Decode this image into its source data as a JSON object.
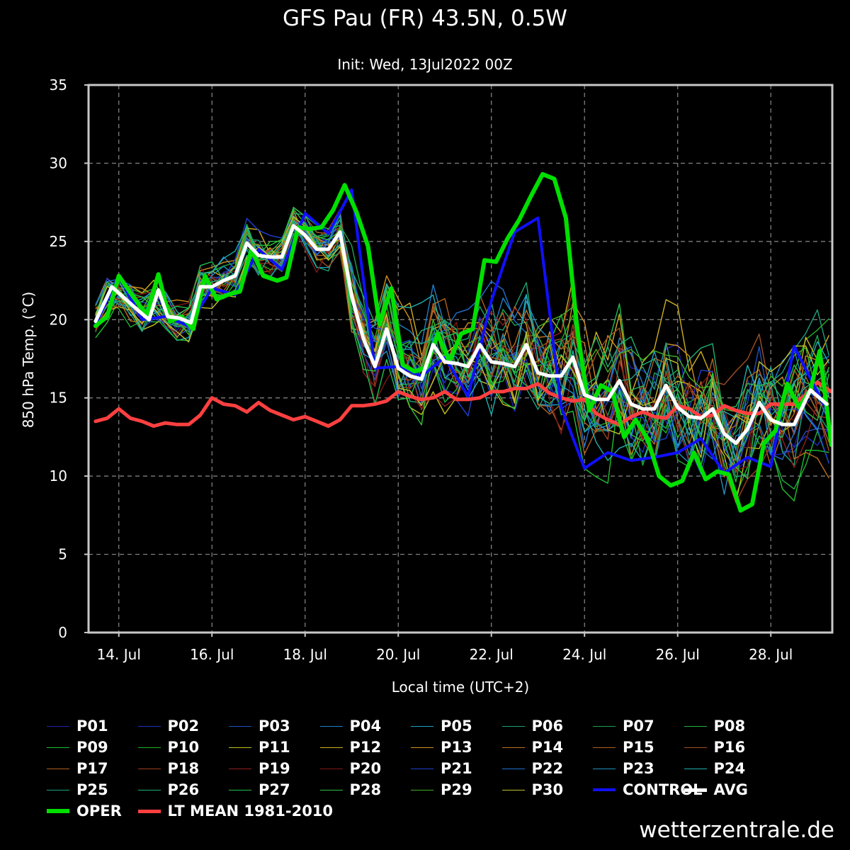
{
  "title": "GFS Pau (FR) 43.5N, 0.5W",
  "subtitle": "Init: Wed, 13Jul2022 00Z",
  "credit": "wetterzentrale.de",
  "chart_data": {
    "type": "line",
    "title": "GFS Pau (FR) 43.5N, 0.5W",
    "xlabel": "Local time (UTC+2)",
    "ylabel": "850 hPa Temp. (°C)",
    "ylim": [
      0,
      35
    ],
    "yticks": [
      0,
      5,
      10,
      15,
      20,
      25,
      30,
      35
    ],
    "x_unit": "days since 13 Jul 00:00 local",
    "xlim": [
      0.35,
      16.32
    ],
    "xticks": [
      {
        "x": 1,
        "label": "14. Jul"
      },
      {
        "x": 3,
        "label": "16. Jul"
      },
      {
        "x": 5,
        "label": "18. Jul"
      },
      {
        "x": 7,
        "label": "20. Jul"
      },
      {
        "x": 9,
        "label": "22. Jul"
      },
      {
        "x": 11,
        "label": "24. Jul"
      },
      {
        "x": 13,
        "label": "26. Jul"
      },
      {
        "x": 15,
        "label": "28. Jul"
      }
    ],
    "grid": true,
    "legend_position": "bottom",
    "series": [
      {
        "name": "CONTROL",
        "color": "#1010ff",
        "width": 4,
        "points": [
          [
            0.5,
            19.7
          ],
          [
            1.0,
            22.8
          ],
          [
            1.5,
            20.0
          ],
          [
            2.0,
            20.2
          ],
          [
            2.5,
            19.6
          ],
          [
            3.0,
            22.0
          ],
          [
            3.5,
            21.6
          ],
          [
            4.0,
            24.5
          ],
          [
            4.5,
            23.2
          ],
          [
            5.0,
            26.8
          ],
          [
            5.5,
            25.5
          ],
          [
            6.0,
            28.3
          ],
          [
            6.5,
            16.9
          ],
          [
            7.0,
            17.0
          ],
          [
            7.5,
            16.4
          ],
          [
            8.0,
            17.6
          ],
          [
            8.5,
            15.1
          ],
          [
            9.0,
            21.2
          ],
          [
            9.5,
            25.6
          ],
          [
            10.0,
            26.5
          ],
          [
            10.5,
            14.4
          ],
          [
            11.0,
            10.5
          ],
          [
            11.5,
            11.5
          ],
          [
            12.0,
            11.0
          ],
          [
            12.5,
            11.2
          ],
          [
            13.0,
            11.5
          ],
          [
            13.5,
            12.4
          ],
          [
            14.0,
            10.2
          ],
          [
            14.5,
            11.2
          ],
          [
            15.0,
            10.6
          ],
          [
            15.5,
            18.3
          ],
          [
            16.2,
            14.2
          ]
        ]
      },
      {
        "name": "AVG",
        "color": "#ffffff",
        "width": 5,
        "points": [
          [
            0.5,
            19.9
          ],
          [
            0.85,
            22.1
          ],
          [
            1.15,
            21.3
          ],
          [
            1.45,
            20.5
          ],
          [
            1.65,
            20.0
          ],
          [
            1.85,
            21.9
          ],
          [
            2.05,
            20.2
          ],
          [
            2.3,
            20.1
          ],
          [
            2.55,
            19.8
          ],
          [
            2.75,
            22.1
          ],
          [
            3.0,
            22.1
          ],
          [
            3.25,
            22.5
          ],
          [
            3.5,
            22.8
          ],
          [
            3.75,
            24.9
          ],
          [
            4.0,
            24.1
          ],
          [
            4.25,
            24.0
          ],
          [
            4.5,
            24.0
          ],
          [
            4.75,
            26.0
          ],
          [
            5.0,
            25.4
          ],
          [
            5.25,
            24.5
          ],
          [
            5.5,
            24.5
          ],
          [
            5.75,
            25.6
          ],
          [
            6.0,
            21.5
          ],
          [
            6.25,
            18.8
          ],
          [
            6.5,
            17.0
          ],
          [
            6.75,
            19.4
          ],
          [
            7.0,
            16.9
          ],
          [
            7.25,
            16.4
          ],
          [
            7.5,
            16.2
          ],
          [
            7.75,
            18.4
          ],
          [
            8.0,
            17.3
          ],
          [
            8.25,
            17.2
          ],
          [
            8.5,
            17.0
          ],
          [
            8.75,
            18.4
          ],
          [
            9.0,
            17.3
          ],
          [
            9.25,
            17.2
          ],
          [
            9.5,
            17.0
          ],
          [
            9.75,
            18.4
          ],
          [
            10.0,
            16.6
          ],
          [
            10.25,
            16.4
          ],
          [
            10.5,
            16.4
          ],
          [
            10.75,
            17.6
          ],
          [
            11.0,
            15.2
          ],
          [
            11.25,
            14.9
          ],
          [
            11.5,
            14.9
          ],
          [
            11.75,
            16.1
          ],
          [
            12.0,
            14.6
          ],
          [
            12.25,
            14.3
          ],
          [
            12.5,
            14.3
          ],
          [
            12.75,
            15.8
          ],
          [
            13.0,
            14.4
          ],
          [
            13.25,
            13.8
          ],
          [
            13.5,
            13.7
          ],
          [
            13.75,
            14.3
          ],
          [
            14.0,
            12.7
          ],
          [
            14.25,
            12.1
          ],
          [
            14.5,
            13.0
          ],
          [
            14.75,
            14.7
          ],
          [
            15.0,
            13.6
          ],
          [
            15.25,
            13.3
          ],
          [
            15.5,
            13.3
          ],
          [
            15.85,
            15.5
          ],
          [
            16.2,
            14.6
          ]
        ]
      },
      {
        "name": "OPER",
        "color": "#00e000",
        "width": 6,
        "points": [
          [
            0.5,
            19.6
          ],
          [
            0.75,
            20.2
          ],
          [
            1.0,
            22.8
          ],
          [
            1.3,
            21.5
          ],
          [
            1.6,
            20.3
          ],
          [
            1.85,
            22.9
          ],
          [
            2.1,
            19.9
          ],
          [
            2.35,
            20.2
          ],
          [
            2.6,
            19.4
          ],
          [
            2.85,
            22.8
          ],
          [
            3.1,
            21.3
          ],
          [
            3.35,
            21.6
          ],
          [
            3.6,
            21.8
          ],
          [
            3.85,
            24.5
          ],
          [
            4.1,
            22.8
          ],
          [
            4.4,
            22.5
          ],
          [
            4.6,
            22.7
          ],
          [
            4.85,
            25.9
          ],
          [
            5.1,
            25.8
          ],
          [
            5.35,
            25.9
          ],
          [
            5.6,
            27.0
          ],
          [
            5.85,
            28.6
          ],
          [
            6.1,
            26.9
          ],
          [
            6.35,
            24.7
          ],
          [
            6.6,
            19.7
          ],
          [
            6.85,
            22.0
          ],
          [
            7.1,
            17.1
          ],
          [
            7.35,
            16.7
          ],
          [
            7.6,
            16.9
          ],
          [
            7.85,
            19.1
          ],
          [
            8.1,
            17.3
          ],
          [
            8.35,
            19.1
          ],
          [
            8.6,
            19.4
          ],
          [
            8.85,
            23.8
          ],
          [
            9.1,
            23.7
          ],
          [
            9.35,
            25.2
          ],
          [
            9.6,
            26.4
          ],
          [
            9.85,
            27.9
          ],
          [
            10.1,
            29.3
          ],
          [
            10.35,
            29.0
          ],
          [
            10.6,
            26.5
          ],
          [
            10.85,
            19.2
          ],
          [
            11.1,
            14.2
          ],
          [
            11.35,
            15.8
          ],
          [
            11.6,
            15.4
          ],
          [
            11.85,
            12.5
          ],
          [
            12.1,
            13.6
          ],
          [
            12.35,
            12.4
          ],
          [
            12.6,
            10.0
          ],
          [
            12.85,
            9.4
          ],
          [
            13.1,
            9.7
          ],
          [
            13.35,
            11.5
          ],
          [
            13.6,
            9.8
          ],
          [
            13.85,
            10.3
          ],
          [
            14.1,
            10.1
          ],
          [
            14.35,
            7.8
          ],
          [
            14.6,
            8.2
          ],
          [
            14.85,
            12.1
          ],
          [
            15.1,
            12.9
          ],
          [
            15.35,
            15.9
          ],
          [
            15.6,
            14.4
          ],
          [
            15.85,
            15.5
          ],
          [
            16.05,
            18.0
          ],
          [
            16.3,
            12.0
          ]
        ]
      },
      {
        "name": "LT MEAN 1981-2010",
        "color": "#ff4040",
        "width": 5,
        "points": [
          [
            0.5,
            13.5
          ],
          [
            0.75,
            13.7
          ],
          [
            1.0,
            14.3
          ],
          [
            1.25,
            13.7
          ],
          [
            1.5,
            13.5
          ],
          [
            1.75,
            13.2
          ],
          [
            2.0,
            13.4
          ],
          [
            2.25,
            13.3
          ],
          [
            2.5,
            13.3
          ],
          [
            2.75,
            13.9
          ],
          [
            3.0,
            15.0
          ],
          [
            3.25,
            14.6
          ],
          [
            3.5,
            14.5
          ],
          [
            3.75,
            14.1
          ],
          [
            4.0,
            14.7
          ],
          [
            4.25,
            14.2
          ],
          [
            4.5,
            13.9
          ],
          [
            4.75,
            13.6
          ],
          [
            5.0,
            13.8
          ],
          [
            5.25,
            13.5
          ],
          [
            5.5,
            13.2
          ],
          [
            5.75,
            13.6
          ],
          [
            6.0,
            14.5
          ],
          [
            6.25,
            14.5
          ],
          [
            6.5,
            14.6
          ],
          [
            6.75,
            14.8
          ],
          [
            7.0,
            15.4
          ],
          [
            7.25,
            15.1
          ],
          [
            7.5,
            14.9
          ],
          [
            7.75,
            15.0
          ],
          [
            8.0,
            15.4
          ],
          [
            8.25,
            14.9
          ],
          [
            8.5,
            14.9
          ],
          [
            8.75,
            15.0
          ],
          [
            9.0,
            15.4
          ],
          [
            9.25,
            15.4
          ],
          [
            9.5,
            15.6
          ],
          [
            9.75,
            15.6
          ],
          [
            10.0,
            15.9
          ],
          [
            10.25,
            15.3
          ],
          [
            10.5,
            15.0
          ],
          [
            10.75,
            14.8
          ],
          [
            11.0,
            14.9
          ],
          [
            11.25,
            14.0
          ],
          [
            11.5,
            13.6
          ],
          [
            11.75,
            13.3
          ],
          [
            12.0,
            13.8
          ],
          [
            12.25,
            14.1
          ],
          [
            12.5,
            13.8
          ],
          [
            12.75,
            13.7
          ],
          [
            13.0,
            14.5
          ],
          [
            13.25,
            14.3
          ],
          [
            13.5,
            13.8
          ],
          [
            13.75,
            13.9
          ],
          [
            14.0,
            14.5
          ],
          [
            14.25,
            14.2
          ],
          [
            14.5,
            14.0
          ],
          [
            14.75,
            14.0
          ],
          [
            15.0,
            14.6
          ],
          [
            15.25,
            14.6
          ],
          [
            15.5,
            14.6
          ],
          [
            15.75,
            15.2
          ],
          [
            16.0,
            16.0
          ],
          [
            16.3,
            15.4
          ]
        ]
      }
    ],
    "members": [
      {
        "name": "P01",
        "color": "#2020b0"
      },
      {
        "name": "P02",
        "color": "#2030c0"
      },
      {
        "name": "P03",
        "color": "#2050c0"
      },
      {
        "name": "P04",
        "color": "#2080c8"
      },
      {
        "name": "P05",
        "color": "#20a0c8"
      },
      {
        "name": "P06",
        "color": "#20a070"
      },
      {
        "name": "P07",
        "color": "#20a050"
      },
      {
        "name": "P08",
        "color": "#20b040"
      },
      {
        "name": "P09",
        "color": "#20c030"
      },
      {
        "name": "P10",
        "color": "#20b020"
      },
      {
        "name": "P11",
        "color": "#c0c020"
      },
      {
        "name": "P12",
        "color": "#d0b020"
      },
      {
        "name": "P13",
        "color": "#d09020"
      },
      {
        "name": "P14",
        "color": "#c07020"
      },
      {
        "name": "P15",
        "color": "#b06020"
      },
      {
        "name": "P16",
        "color": "#a05020"
      },
      {
        "name": "P17",
        "color": "#b06020"
      },
      {
        "name": "P18",
        "color": "#a04020"
      },
      {
        "name": "P19",
        "color": "#902020"
      },
      {
        "name": "P20",
        "color": "#801818"
      },
      {
        "name": "P21",
        "color": "#2040d0"
      },
      {
        "name": "P22",
        "color": "#2070d0"
      },
      {
        "name": "P23",
        "color": "#2090c0"
      },
      {
        "name": "P24",
        "color": "#20b0b0"
      },
      {
        "name": "P25",
        "color": "#20a080"
      },
      {
        "name": "P26",
        "color": "#20b070"
      },
      {
        "name": "P27",
        "color": "#20c050"
      },
      {
        "name": "P28",
        "color": "#30c040"
      },
      {
        "name": "P29",
        "color": "#40b020"
      },
      {
        "name": "P30",
        "color": "#c0c030"
      }
    ],
    "legend_order": [
      "P01",
      "P02",
      "P03",
      "P04",
      "P05",
      "P06",
      "P07",
      "P08",
      "P09",
      "P10",
      "P11",
      "P12",
      "P13",
      "P14",
      "P15",
      "P16",
      "P17",
      "P18",
      "P19",
      "P20",
      "P21",
      "P22",
      "P23",
      "P24",
      "P25",
      "P26",
      "P27",
      "P28",
      "P29",
      "P30",
      "CONTROL",
      "AVG",
      "OPER",
      "LT MEAN 1981-2010"
    ]
  }
}
